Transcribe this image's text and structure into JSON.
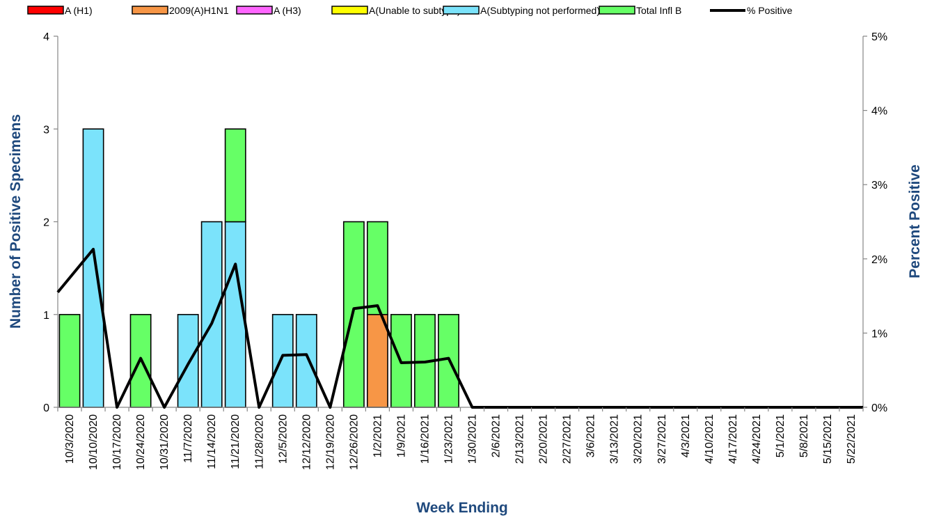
{
  "chart_data": {
    "type": "bar",
    "stacked": true,
    "categories": [
      "10/3/2020",
      "10/10/2020",
      "10/17/2020",
      "10/24/2020",
      "10/31/2020",
      "11/7/2020",
      "11/14/2020",
      "11/21/2020",
      "11/28/2020",
      "12/5/2020",
      "12/12/2020",
      "12/19/2020",
      "12/26/2020",
      "1/2/2021",
      "1/9/2021",
      "1/16/2021",
      "1/23/2021",
      "1/30/2021",
      "2/6/2021",
      "2/13/2021",
      "2/20/2021",
      "2/27/2021",
      "3/6/2021",
      "3/13/2021",
      "3/20/2021",
      "3/27/2021",
      "4/3/2021",
      "4/10/2021",
      "4/17/2021",
      "4/24/2021",
      "5/1/2021",
      "5/8/2021",
      "5/15/2021",
      "5/22/2021"
    ],
    "series": [
      {
        "name": "A (H1)",
        "color": "#ff0000",
        "values": [
          0,
          0,
          0,
          0,
          0,
          0,
          0,
          0,
          0,
          0,
          0,
          0,
          0,
          0,
          0,
          0,
          0,
          0,
          0,
          0,
          0,
          0,
          0,
          0,
          0,
          0,
          0,
          0,
          0,
          0,
          0,
          0,
          0,
          0
        ]
      },
      {
        "name": "2009(A)H1N1",
        "color": "#f79646",
        "values": [
          0,
          0,
          0,
          0,
          0,
          0,
          0,
          0,
          0,
          0,
          0,
          0,
          0,
          1,
          0,
          0,
          0,
          0,
          0,
          0,
          0,
          0,
          0,
          0,
          0,
          0,
          0,
          0,
          0,
          0,
          0,
          0,
          0,
          0
        ]
      },
      {
        "name": "A (H3)",
        "color": "#ff66ff",
        "values": [
          0,
          0,
          0,
          0,
          0,
          0,
          0,
          0,
          0,
          0,
          0,
          0,
          0,
          0,
          0,
          0,
          0,
          0,
          0,
          0,
          0,
          0,
          0,
          0,
          0,
          0,
          0,
          0,
          0,
          0,
          0,
          0,
          0,
          0
        ]
      },
      {
        "name": "A(Unable to subtype)",
        "color": "#ffff00",
        "values": [
          0,
          0,
          0,
          0,
          0,
          0,
          0,
          0,
          0,
          0,
          0,
          0,
          0,
          0,
          0,
          0,
          0,
          0,
          0,
          0,
          0,
          0,
          0,
          0,
          0,
          0,
          0,
          0,
          0,
          0,
          0,
          0,
          0,
          0
        ]
      },
      {
        "name": "A(Subtyping not performed)",
        "color": "#7be3fb",
        "values": [
          0,
          3,
          0,
          0,
          0,
          1,
          2,
          2,
          0,
          1,
          1,
          0,
          0,
          0,
          0,
          0,
          0,
          0,
          0,
          0,
          0,
          0,
          0,
          0,
          0,
          0,
          0,
          0,
          0,
          0,
          0,
          0,
          0,
          0
        ]
      },
      {
        "name": "Total Infl B",
        "color": "#66ff66",
        "values": [
          1,
          0,
          0,
          1,
          0,
          0,
          0,
          1,
          0,
          0,
          0,
          0,
          2,
          1,
          1,
          1,
          1,
          0,
          0,
          0,
          0,
          0,
          0,
          0,
          0,
          0,
          0,
          0,
          0,
          0,
          0,
          0,
          0,
          0
        ]
      }
    ],
    "line_series": {
      "name": "% Positive",
      "color": "#000000",
      "axis": "right",
      "values": [
        1.55,
        2.13,
        0,
        0.66,
        0,
        0.58,
        1.13,
        1.93,
        0,
        0.7,
        0.71,
        0,
        1.33,
        1.37,
        0.6,
        0.61,
        0.66,
        0,
        0,
        0,
        0,
        0,
        0,
        0,
        0,
        0,
        0,
        0,
        0,
        0,
        0,
        0,
        0,
        0
      ]
    },
    "xlabel": "Week Ending",
    "ylabel": "Number of  Positive Specimens",
    "y2label": "Percent Positive",
    "ylim": [
      0,
      4
    ],
    "yticks": [
      0,
      1,
      2,
      3,
      4
    ],
    "y2lim": [
      0,
      5
    ],
    "y2ticks": [
      "0%",
      "1%",
      "2%",
      "3%",
      "4%",
      "5%"
    ],
    "grid": false,
    "legend_position": "top",
    "title_color": "#1f497d"
  }
}
